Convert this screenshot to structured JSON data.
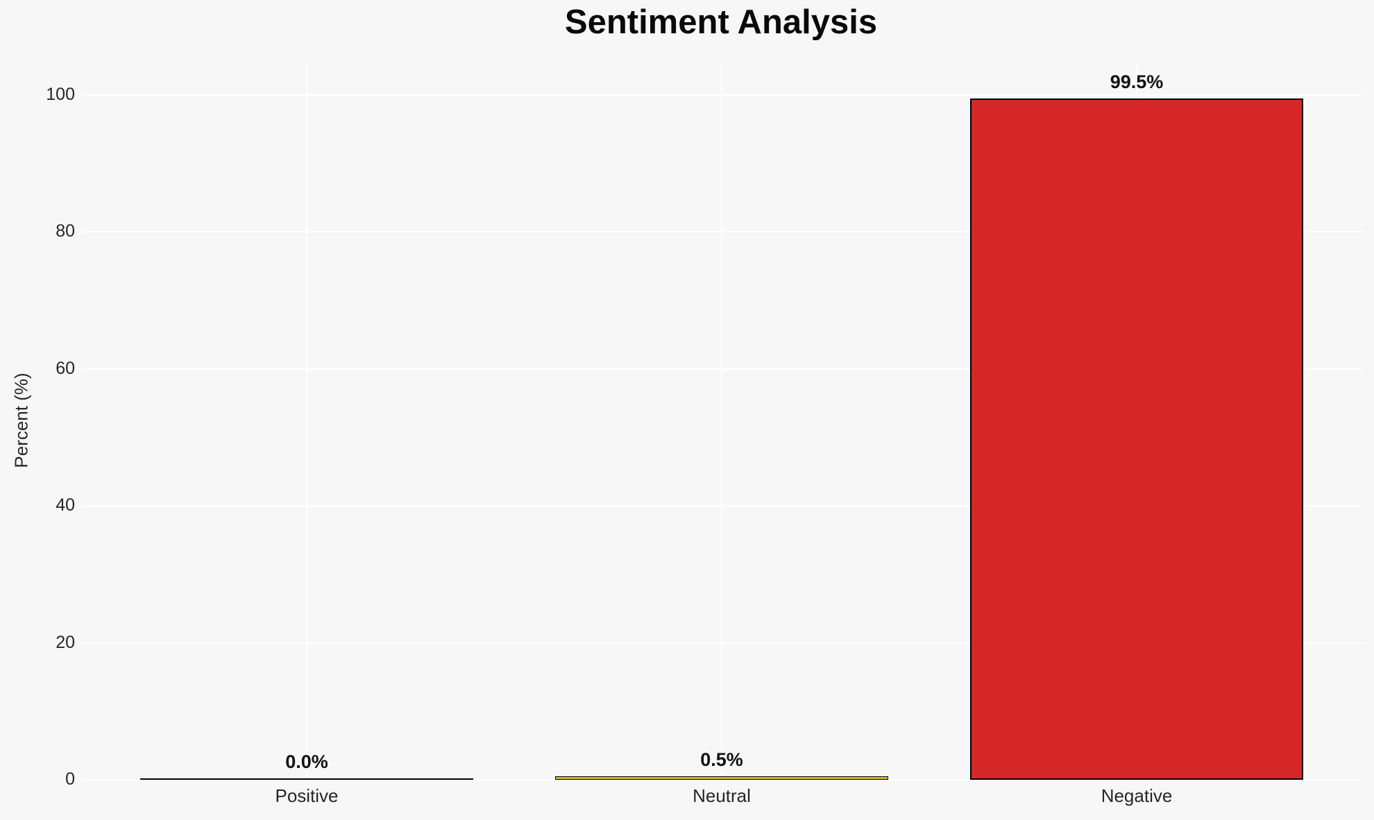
{
  "figure": {
    "background": "#f7f7f7",
    "grid_color": "#ffffff",
    "text_color": "#262626"
  },
  "chart_data": {
    "type": "bar",
    "title": "Sentiment Analysis",
    "xlabel": "",
    "ylabel": "Percent (%)",
    "categories": [
      "Positive",
      "Neutral",
      "Negative"
    ],
    "values": [
      0.0,
      0.5,
      99.5
    ],
    "value_labels": [
      "0.0%",
      "0.5%",
      "99.5%"
    ],
    "bar_fills": [
      null,
      "#dcb732",
      "#d62728"
    ],
    "bar_edge_color": "#000000",
    "yticks": [
      0,
      20,
      40,
      60,
      80,
      100
    ],
    "ytick_labels": [
      "0",
      "20",
      "40",
      "60",
      "80",
      "100"
    ],
    "ylim": [
      0,
      104.6
    ],
    "grid": true,
    "grid_axes": "both",
    "legend": false
  }
}
